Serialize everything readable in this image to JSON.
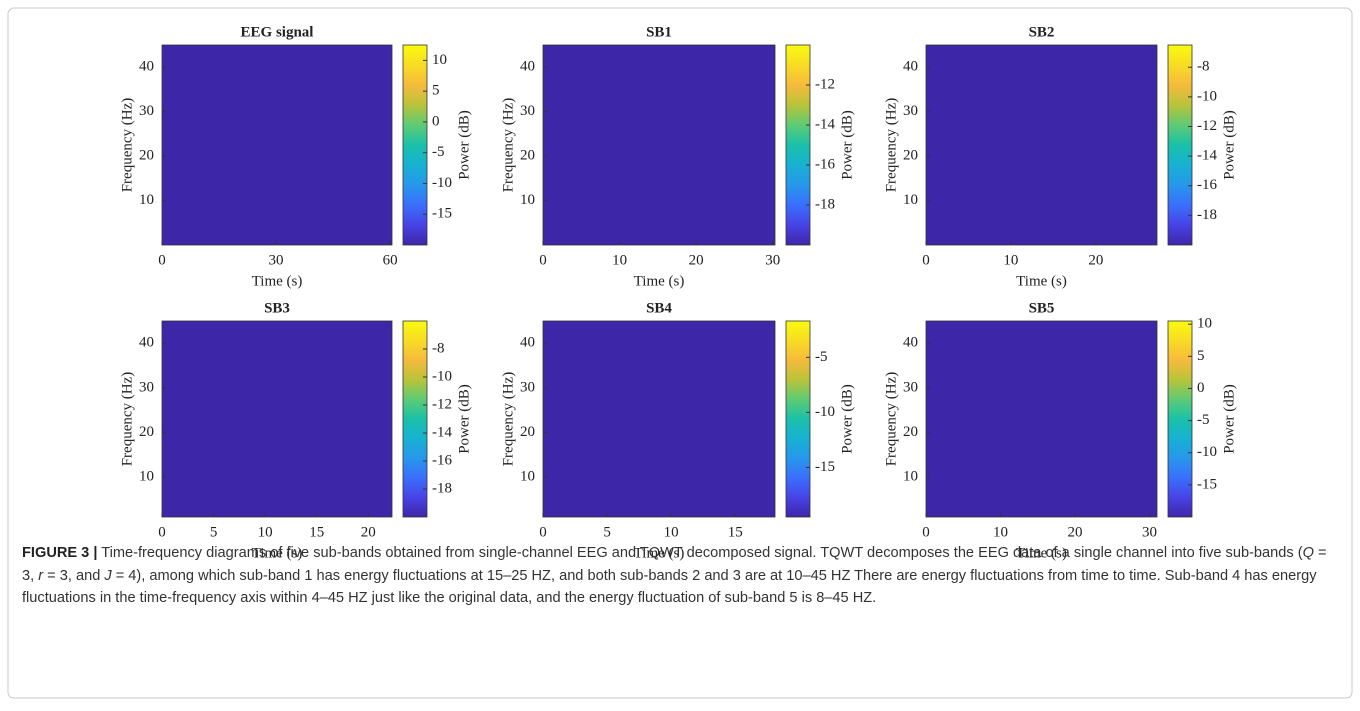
{
  "chart_data": [
    {
      "type": "heatmap",
      "title": "EEG signal",
      "x_label": "Time (s)",
      "y_label": "Frequency (Hz)",
      "colorbar_label": "Power (dB)",
      "xlim": [
        0,
        60.5
      ],
      "xticks": [
        0,
        30,
        60
      ],
      "ylim": [
        0,
        45
      ],
      "yticks": [
        10,
        20,
        30,
        40
      ],
      "clim": [
        -20,
        12.5
      ],
      "cticks": [
        10,
        5,
        0,
        -5,
        -10,
        -15
      ]
    },
    {
      "type": "heatmap",
      "title": "SB1",
      "x_label": "Time (s)",
      "y_label": "Frequency (Hz)",
      "colorbar_label": "Power (dB)",
      "xlim": [
        0,
        30.3
      ],
      "xticks": [
        0,
        10,
        20,
        30
      ],
      "ylim": [
        0,
        45
      ],
      "yticks": [
        10,
        20,
        30,
        40
      ],
      "clim": [
        -20,
        -10
      ],
      "cticks": [
        -12,
        -14,
        -16,
        -18
      ]
    },
    {
      "type": "heatmap",
      "title": "SB2",
      "x_label": "Time (s)",
      "y_label": "Frequency (Hz)",
      "colorbar_label": "Power (dB)",
      "xlim": [
        0,
        27.2
      ],
      "xticks": [
        0,
        10,
        20
      ],
      "ylim": [
        0,
        45
      ],
      "yticks": [
        10,
        20,
        30,
        40
      ],
      "clim": [
        -20,
        -6.5
      ],
      "cticks": [
        -8,
        -10,
        -12,
        -14,
        -16,
        -18
      ]
    },
    {
      "type": "heatmap",
      "title": "SB3",
      "x_label": "Time (s)",
      "y_label": "Frequency (Hz)",
      "colorbar_label": "Power (dB)",
      "xlim": [
        0,
        22.3
      ],
      "xticks": [
        0,
        5,
        10,
        15,
        20
      ],
      "ylim": [
        1,
        45
      ],
      "yticks": [
        10,
        20,
        30,
        40
      ],
      "clim": [
        -20,
        -6
      ],
      "cticks": [
        -8,
        -10,
        -12,
        -14,
        -16,
        -18
      ]
    },
    {
      "type": "heatmap",
      "title": "SB4",
      "x_label": "Time (s)",
      "y_label": "Frequency (Hz)",
      "colorbar_label": "Power (dB)",
      "xlim": [
        0,
        18.1
      ],
      "xticks": [
        0,
        5,
        10,
        15
      ],
      "ylim": [
        1,
        45
      ],
      "yticks": [
        10,
        20,
        30,
        40
      ],
      "clim": [
        -19.5,
        -1.7
      ],
      "cticks": [
        -5,
        -10,
        -15
      ]
    },
    {
      "type": "heatmap",
      "title": "SB5",
      "x_label": "Time (s)",
      "y_label": "Frequency (Hz)",
      "colorbar_label": "Power (dB)",
      "xlim": [
        0,
        31
      ],
      "xticks": [
        0,
        10,
        20,
        30
      ],
      "ylim": [
        1,
        45
      ],
      "yticks": [
        10,
        20,
        30,
        40
      ],
      "clim": [
        -20,
        10.5
      ],
      "cticks": [
        10,
        5,
        0,
        -5,
        -10,
        -15
      ]
    }
  ],
  "colormap": [
    "#3e26a8",
    "#4743e6",
    "#3a6ffb",
    "#2797eb",
    "#17b1d2",
    "#1ac1a9",
    "#5ecb74",
    "#b9c33a",
    "#f5ba3c",
    "#f8dc24",
    "#f9fb0e"
  ],
  "caption": {
    "label": "FIGURE 3 |",
    "parts": [
      {
        "text": " Time-frequency diagrams of five sub-bands obtained from single-channel EEG and TQWT decomposed signal. TQWT decomposes the EEG data of a single channel into five sub-bands ("
      },
      {
        "text": "Q",
        "style": "italic"
      },
      {
        "text": " = 3, "
      },
      {
        "text": "r",
        "style": "italic"
      },
      {
        "text": " = 3, and "
      },
      {
        "text": "J",
        "style": "italic"
      },
      {
        "text": " = 4), among which sub-band 1 has energy fluctuations at 15–25 HZ, and both sub-bands 2 and 3 are at 10–45 HZ There are energy fluctuations from time to time. Sub-band 4 has energy fluctuations in the time-frequency axis within 4–45 HZ just like the original data, and the energy fluctuation of sub-band 5 is 8–45 HZ."
      }
    ]
  }
}
